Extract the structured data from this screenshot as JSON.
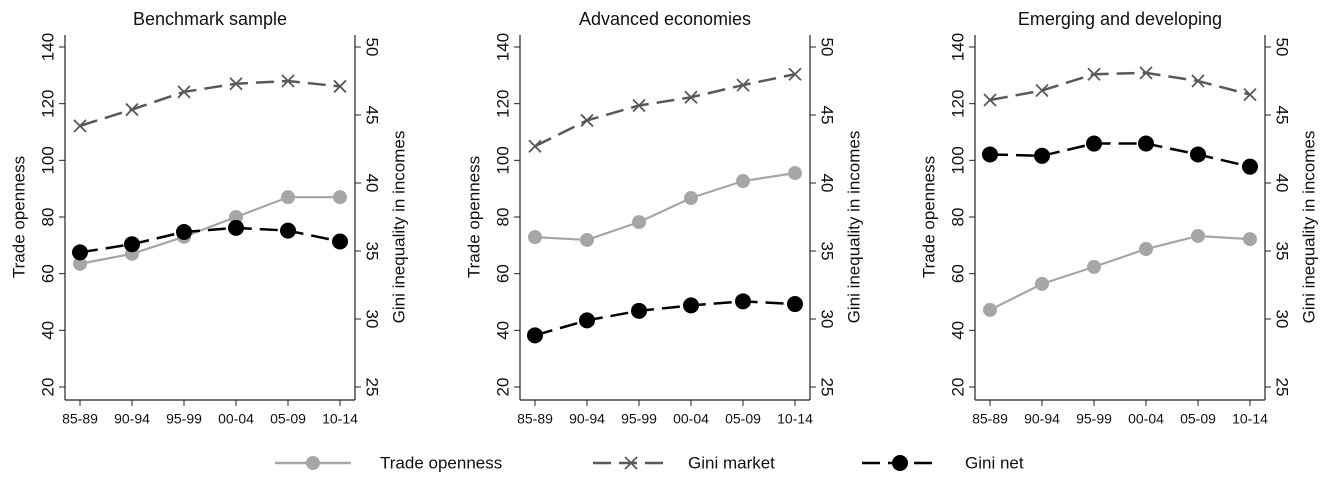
{
  "chart_data": [
    {
      "type": "line",
      "title": "Benchmark sample",
      "categories": [
        "85-89",
        "90-94",
        "95-99",
        "00-04",
        "05-09",
        "10-14"
      ],
      "y_label": "Trade openness",
      "y2_label": "Gini inequality in incomes",
      "ylim": [
        20,
        140
      ],
      "yticks": [
        20,
        40,
        60,
        80,
        100,
        120,
        140
      ],
      "y2lim": [
        25,
        50
      ],
      "y2ticks": [
        25,
        30,
        35,
        40,
        45,
        50
      ],
      "series": [
        {
          "name": "Trade openness",
          "color": "#a6a6a6",
          "line_style": "solid",
          "marker": "circle",
          "values": [
            63.5,
            67,
            73,
            80,
            87,
            87
          ]
        },
        {
          "name": "Gini market",
          "color": "#595959",
          "line_style": "dashed",
          "marker": "x",
          "axis": "y2",
          "values": [
            44.2,
            45.4,
            46.7,
            47.3,
            47.5,
            47.1
          ]
        },
        {
          "name": "Gini net",
          "color": "#000000",
          "line_style": "dashed",
          "marker": "circle",
          "axis": "y2",
          "values": [
            34.9,
            35.5,
            36.4,
            36.7,
            36.5,
            35.7
          ]
        }
      ]
    },
    {
      "type": "line",
      "title": "Advanced economies",
      "categories": [
        "85-89",
        "90-94",
        "95-99",
        "00-04",
        "05-09",
        "10-14"
      ],
      "y_label": "Trade openness",
      "y2_label": "Gini inequality in incomes",
      "ylim": [
        20,
        140
      ],
      "yticks": [
        20,
        40,
        60,
        80,
        100,
        120,
        140
      ],
      "y2lim": [
        25,
        50
      ],
      "y2ticks": [
        25,
        30,
        35,
        40,
        45,
        50
      ],
      "series": [
        {
          "name": "Trade openness",
          "color": "#a6a6a6",
          "line_style": "solid",
          "marker": "circle",
          "values": [
            72.9,
            71.9,
            78.2,
            86.7,
            92.7,
            95.5
          ]
        },
        {
          "name": "Gini market",
          "color": "#595959",
          "line_style": "dashed",
          "marker": "x",
          "axis": "y2",
          "values": [
            42.7,
            44.6,
            45.7,
            46.3,
            47.2,
            48.0
          ]
        },
        {
          "name": "Gini net",
          "color": "#000000",
          "line_style": "dashed",
          "marker": "circle",
          "axis": "y2",
          "values": [
            28.8,
            29.9,
            30.6,
            31.0,
            31.3,
            31.1
          ]
        }
      ]
    },
    {
      "type": "line",
      "title": "Emerging and developing",
      "categories": [
        "85-89",
        "90-94",
        "95-99",
        "00-04",
        "05-09",
        "10-14"
      ],
      "y_label": "Trade openness",
      "y2_label": "Gini inequality in incomes",
      "ylim": [
        20,
        140
      ],
      "yticks": [
        20,
        40,
        60,
        80,
        100,
        120,
        140
      ],
      "y2lim": [
        25,
        50
      ],
      "y2ticks": [
        25,
        30,
        35,
        40,
        45,
        50
      ],
      "series": [
        {
          "name": "Trade openness",
          "color": "#a6a6a6",
          "line_style": "solid",
          "marker": "circle",
          "values": [
            47.2,
            56.4,
            62.4,
            68.7,
            73.3,
            72.2
          ]
        },
        {
          "name": "Gini market",
          "color": "#595959",
          "line_style": "dashed",
          "marker": "x",
          "axis": "y2",
          "values": [
            46.1,
            46.8,
            48.0,
            48.1,
            47.5,
            46.5
          ]
        },
        {
          "name": "Gini net",
          "color": "#000000",
          "line_style": "dashed",
          "marker": "circle",
          "axis": "y2",
          "values": [
            42.1,
            42.0,
            42.9,
            42.9,
            42.1,
            41.2
          ]
        }
      ]
    }
  ]
}
